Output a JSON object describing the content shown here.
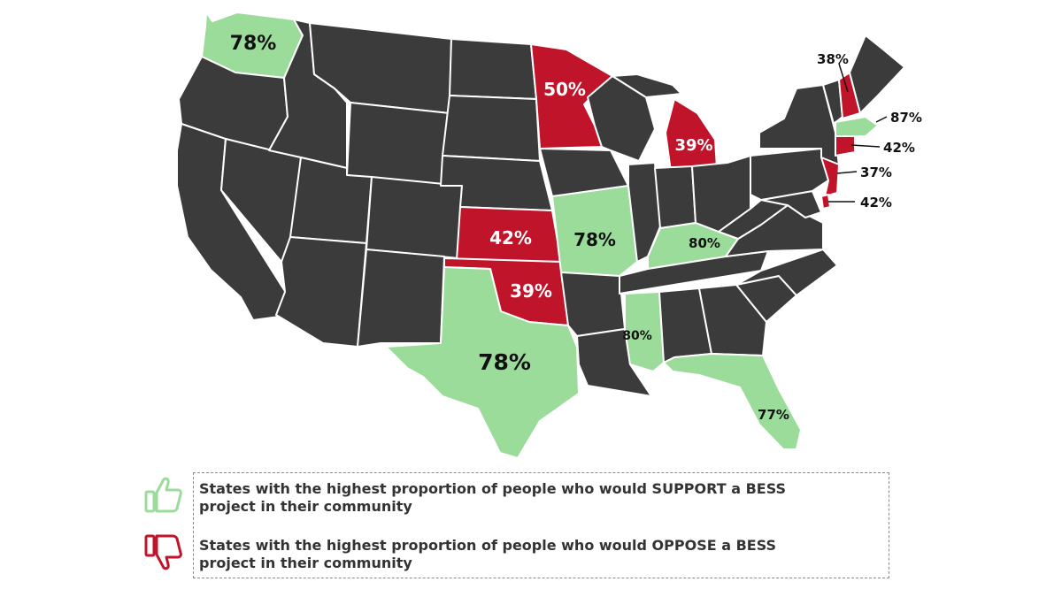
{
  "colors": {
    "support": "#9bdc9b",
    "oppose": "#c0142a",
    "other": "#3b3b3b"
  },
  "labels": {
    "wa": "78%",
    "mn": "50%",
    "mi": "39%",
    "nh": "38%",
    "ma": "87%",
    "ct": "42%",
    "nj": "37%",
    "de": "42%",
    "ks": "42%",
    "mo": "78%",
    "ky": "80%",
    "ok": "39%",
    "tx": "78%",
    "ms": "80%",
    "fl": "77%"
  },
  "legend": {
    "support": {
      "icon": "thumbs-up-icon",
      "line1": "States with the highest proportion of people who would SUPPORT a BESS",
      "line2": "project in their community"
    },
    "oppose": {
      "icon": "thumbs-down-icon",
      "line1": "States with the highest proportion of people who would OPPOSE a BESS",
      "line2": "project in their community"
    }
  }
}
